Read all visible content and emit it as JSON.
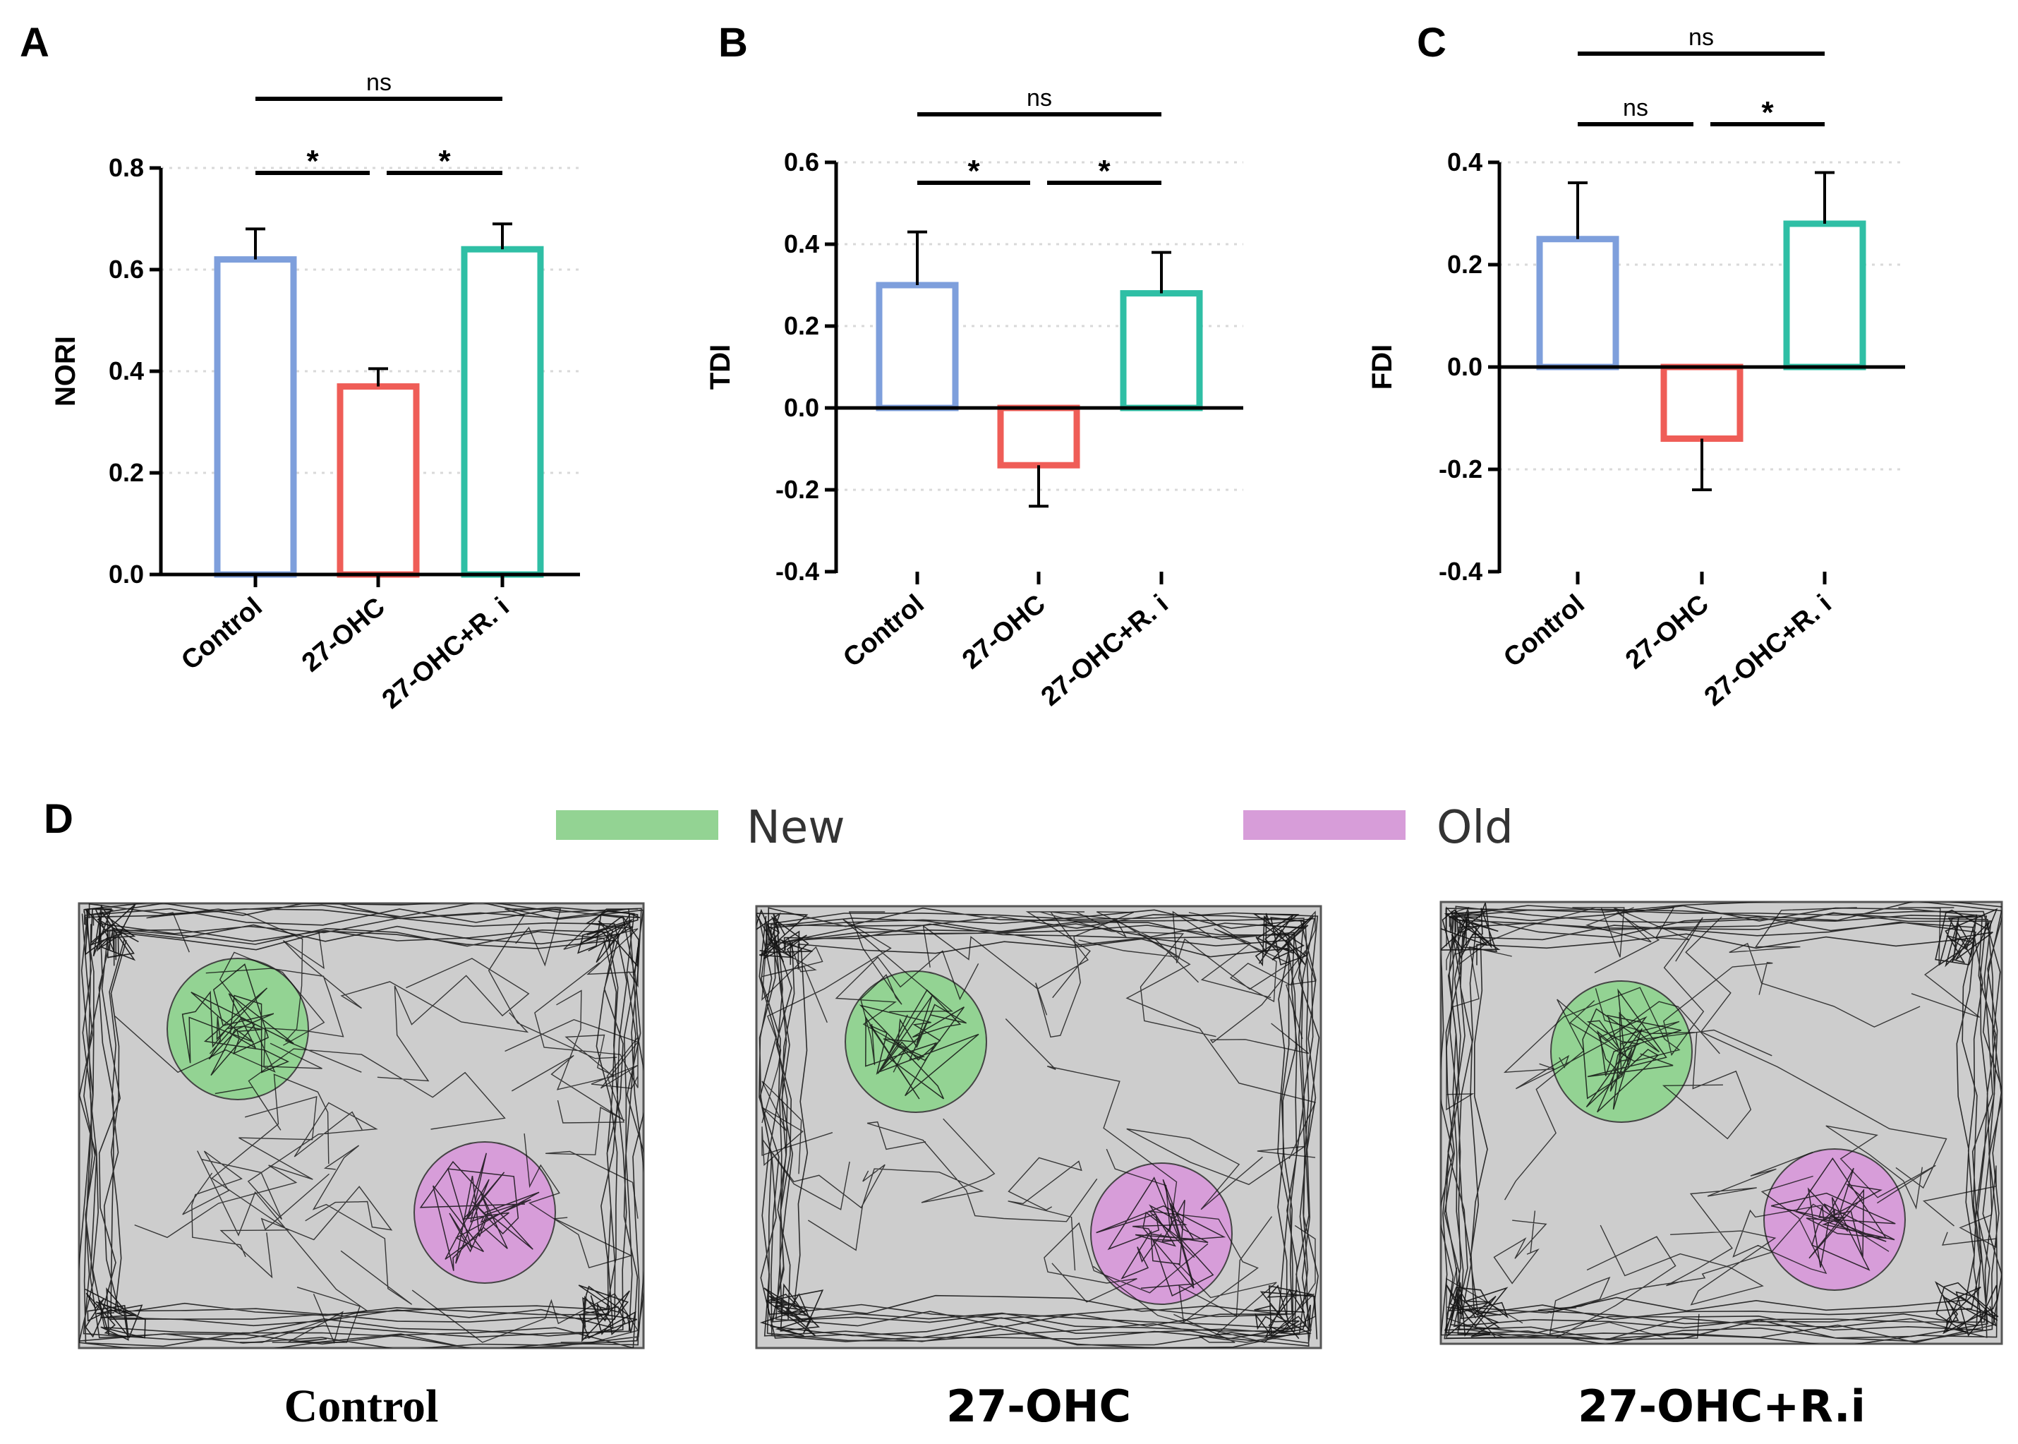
{
  "chart_data": [
    {
      "panel": "A",
      "type": "bar",
      "ylabel": "NORI",
      "ylim": [
        0,
        0.8
      ],
      "yticks": [
        0.0,
        0.2,
        0.4,
        0.6,
        0.8
      ],
      "ytick_labels": [
        "0.0",
        "0.2",
        "0.4",
        "0.6",
        "0.8"
      ],
      "categories": [
        "Control",
        "27-OHC",
        "27-OHC+R. i"
      ],
      "values": [
        0.62,
        0.37,
        0.64
      ],
      "errors": [
        0.06,
        0.035,
        0.05
      ],
      "colors": [
        "#7e9fdc",
        "#ef5d57",
        "#2fbfa5"
      ],
      "comparisons": [
        {
          "from": 0,
          "to": 2,
          "label": "ns",
          "level": 2
        },
        {
          "from": 0,
          "to": 1,
          "label": "*",
          "level": 1
        },
        {
          "from": 1,
          "to": 2,
          "label": "*",
          "level": 1
        }
      ]
    },
    {
      "panel": "B",
      "type": "bar",
      "ylabel": "TDI",
      "ylim": [
        -0.4,
        0.6
      ],
      "yticks": [
        -0.4,
        -0.2,
        0.0,
        0.2,
        0.4,
        0.6
      ],
      "ytick_labels": [
        "-0.4",
        "-0.2",
        "0.0",
        "0.2",
        "0.4",
        "0.6"
      ],
      "categories": [
        "Control",
        "27-OHC",
        "27-OHC+R. i"
      ],
      "values": [
        0.3,
        -0.14,
        0.28
      ],
      "errors": [
        0.13,
        0.1,
        0.1
      ],
      "colors": [
        "#7e9fdc",
        "#ef5d57",
        "#2fbfa5"
      ],
      "comparisons": [
        {
          "from": 0,
          "to": 2,
          "label": "ns",
          "level": 2
        },
        {
          "from": 0,
          "to": 1,
          "label": "*",
          "level": 1
        },
        {
          "from": 1,
          "to": 2,
          "label": "*",
          "level": 1
        }
      ]
    },
    {
      "panel": "C",
      "type": "bar",
      "ylabel": "FDI",
      "ylim": [
        -0.4,
        0.4
      ],
      "yticks": [
        -0.4,
        -0.2,
        0.0,
        0.2,
        0.4
      ],
      "ytick_labels": [
        "-0.4",
        "-0.2",
        "0.0",
        "0.2",
        "0.4"
      ],
      "categories": [
        "Control",
        "27-OHC",
        "27-OHC+R. i"
      ],
      "values": [
        0.25,
        -0.14,
        0.28
      ],
      "errors": [
        0.11,
        0.1,
        0.1
      ],
      "colors": [
        "#7e9fdc",
        "#ef5d57",
        "#2fbfa5"
      ],
      "comparisons": [
        {
          "from": 0,
          "to": 2,
          "label": "ns",
          "level": 2
        },
        {
          "from": 0,
          "to": 1,
          "label": "ns",
          "level": 1
        },
        {
          "from": 1,
          "to": 2,
          "label": "*",
          "level": 1
        }
      ]
    }
  ],
  "panel_d": {
    "letter": "D",
    "legend": [
      {
        "label": "New",
        "color": "#93d393"
      },
      {
        "label": "Old",
        "color": "#d79dd9"
      }
    ],
    "tracks": [
      {
        "title": "Control"
      },
      {
        "title": "27-OHC"
      },
      {
        "title": "27-OHC+R.i"
      }
    ],
    "arena_color": "#cdcdcd",
    "new_color": "#93d393",
    "old_color": "#d79dd9"
  }
}
